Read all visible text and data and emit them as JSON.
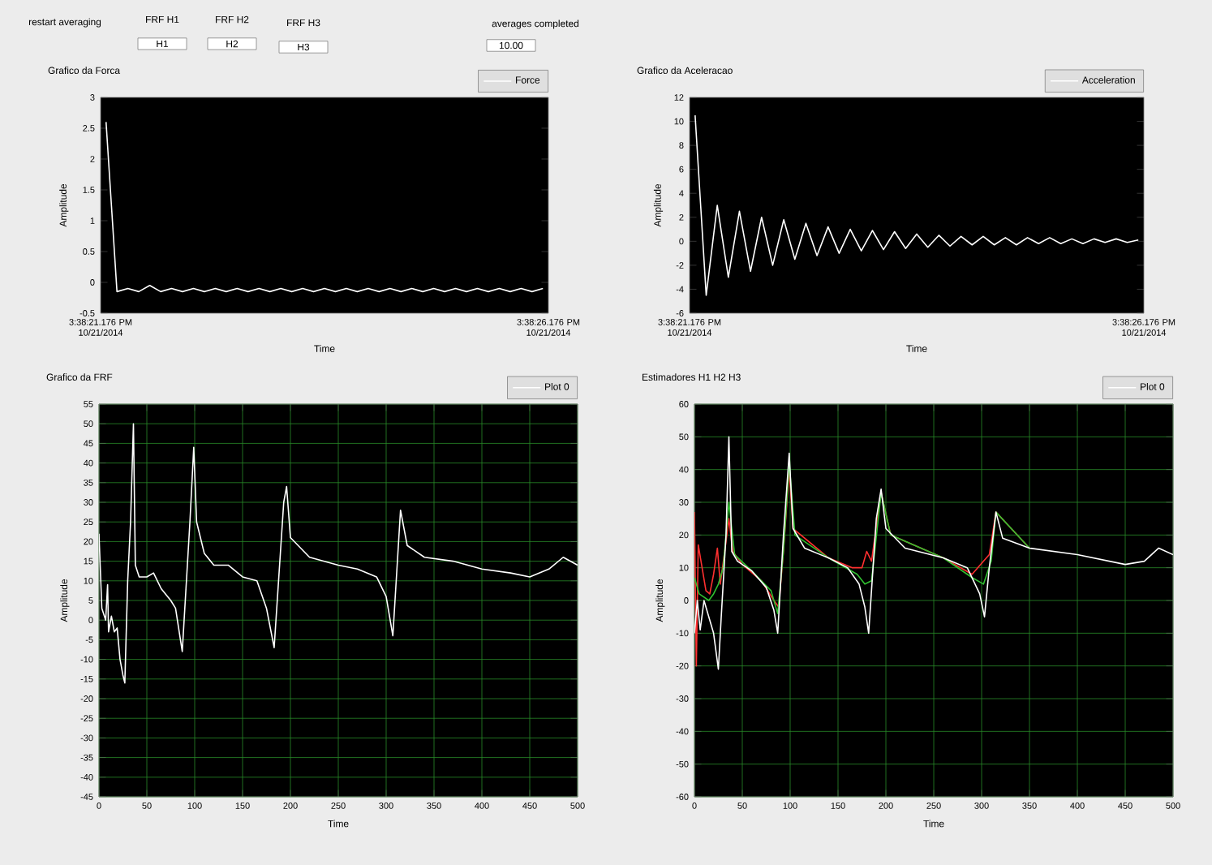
{
  "chart_data": [
    {
      "type": "other",
      "annotations": [
        "restart averaging",
        "FRF H1",
        "H1",
        "FRF H2",
        "H2",
        "FRF H3",
        "H3",
        "averages completed",
        "10.00"
      ]
    },
    {
      "type": "line",
      "title": "Grafico da Forca",
      "xlabel": "Time",
      "ylabel": "Amplitude",
      "legend": "top right",
      "annotations": [
        "3:38:21.176 PM 10/21/2014",
        "3:38:26.176 PM 10/21/2014"
      ],
      "categories": [
        null,
        null,
        null,
        null,
        null,
        null,
        null,
        null,
        null,
        null,
        null,
        null,
        null,
        null,
        null,
        null,
        null,
        null,
        null,
        null,
        null,
        null,
        null,
        null,
        null,
        null,
        null,
        null,
        null,
        null,
        null,
        null,
        null,
        null,
        null,
        null,
        null,
        null,
        null,
        null,
        null
      ],
      "ylim": [
        -0.5,
        3
      ],
      "yticks": [
        -0.5,
        0,
        0.5,
        1,
        1.5,
        2,
        2.5,
        3
      ],
      "series": [
        {
          "name": "Force",
          "color": "#ffffff",
          "values": [
            2.6,
            -0.15,
            -0.1,
            -0.15,
            -0.05,
            -0.15,
            -0.1,
            -0.15,
            -0.1,
            -0.15,
            -0.1,
            -0.15,
            -0.1,
            -0.15,
            -0.1,
            -0.15,
            -0.1,
            -0.15,
            -0.1,
            -0.15,
            -0.1,
            -0.15,
            -0.1,
            -0.15,
            -0.1,
            -0.15,
            -0.1,
            -0.15,
            -0.1,
            -0.15,
            -0.1,
            -0.15,
            -0.1,
            -0.15,
            -0.1,
            -0.15,
            -0.1,
            -0.15,
            -0.1,
            -0.15,
            -0.1
          ]
        }
      ]
    },
    {
      "type": "line",
      "title": "Grafico da Aceleracao",
      "xlabel": "Time",
      "ylabel": "Amplitude",
      "legend": "top right",
      "annotations": [
        "3:38:21.176 PM 10/21/2014",
        "3:38:26.176 PM 10/21/2014"
      ],
      "categories": [
        null,
        null,
        null,
        null,
        null,
        null,
        null,
        null,
        null,
        null,
        null,
        null,
        null,
        null,
        null,
        null,
        null,
        null,
        null,
        null,
        null,
        null,
        null,
        null,
        null,
        null,
        null,
        null,
        null,
        null,
        null,
        null,
        null,
        null,
        null,
        null,
        null,
        null,
        null,
        null,
        null
      ],
      "ylim": [
        -6,
        12
      ],
      "yticks": [
        -6,
        -4,
        -2,
        0,
        2,
        4,
        6,
        8,
        10,
        12
      ],
      "series": [
        {
          "name": "Acceleration",
          "color": "#ffffff",
          "values": [
            10.5,
            -4.5,
            3,
            -3,
            2.5,
            -2.5,
            2,
            -2,
            1.8,
            -1.5,
            1.5,
            -1.2,
            1.2,
            -1,
            1,
            -0.8,
            0.9,
            -0.7,
            0.8,
            -0.6,
            0.6,
            -0.5,
            0.5,
            -0.4,
            0.4,
            -0.3,
            0.4,
            -0.3,
            0.3,
            -0.3,
            0.3,
            -0.2,
            0.3,
            -0.2,
            0.2,
            -0.2,
            0.2,
            -0.1,
            0.2,
            -0.1,
            0.1
          ]
        }
      ]
    },
    {
      "type": "line",
      "title": "Grafico da FRF",
      "xlabel": "Time",
      "ylabel": "Amplitude",
      "legend": "top right",
      "grid": true,
      "xlim": [
        0,
        500
      ],
      "xticks": [
        0,
        50,
        100,
        150,
        200,
        250,
        300,
        350,
        400,
        450,
        500
      ],
      "ylim": [
        -45,
        55
      ],
      "yticks": [
        -45,
        -40,
        -35,
        -30,
        -25,
        -20,
        -15,
        -10,
        -5,
        0,
        5,
        10,
        15,
        20,
        25,
        30,
        35,
        40,
        45,
        50,
        55
      ],
      "series": [
        {
          "name": "Plot 0",
          "color": "#ffffff",
          "x": [
            0,
            3,
            7,
            9,
            10,
            13,
            16,
            19,
            22,
            25,
            27,
            30,
            33,
            36,
            38,
            42,
            50,
            57,
            65,
            75,
            80,
            87,
            95,
            99,
            102,
            110,
            120,
            135,
            150,
            165,
            175,
            183,
            193,
            196,
            200,
            220,
            250,
            270,
            290,
            300,
            307,
            315,
            322,
            340,
            370,
            400,
            430,
            450,
            470,
            485,
            500
          ],
          "values": [
            22,
            3,
            0,
            9,
            -3,
            1,
            -3,
            -2,
            -10,
            -14,
            -16,
            10,
            25,
            50,
            14,
            11,
            11,
            12,
            8,
            5,
            3,
            -8,
            25,
            44,
            25,
            17,
            14,
            14,
            11,
            10,
            3,
            -7,
            30,
            34,
            21,
            16,
            14,
            13,
            11,
            6,
            -4,
            28,
            19,
            16,
            15,
            13,
            12,
            11,
            13,
            16,
            14
          ]
        }
      ]
    },
    {
      "type": "line",
      "title": "Estimadores H1 H2 H3",
      "xlabel": "Time",
      "ylabel": "Amplitude",
      "legend": "top right",
      "grid": true,
      "xlim": [
        0,
        500
      ],
      "xticks": [
        0,
        50,
        100,
        150,
        200,
        250,
        300,
        350,
        400,
        450,
        500
      ],
      "ylim": [
        -60,
        60
      ],
      "yticks": [
        -60,
        -50,
        -40,
        -30,
        -20,
        -10,
        0,
        10,
        20,
        30,
        40,
        50,
        60
      ],
      "series": [
        {
          "color": "#ff3030",
          "x": [
            0,
            2,
            4,
            8,
            12,
            16,
            20,
            24,
            27,
            33,
            36,
            40,
            50,
            70,
            83,
            88,
            93,
            99,
            103,
            140,
            165,
            175,
            180,
            185,
            195,
            205,
            260,
            290,
            302,
            308,
            315,
            350
          ],
          "values": [
            27,
            -20,
            17,
            10,
            3,
            2,
            8,
            16,
            5,
            18,
            25,
            15,
            11,
            6,
            0,
            -2,
            15,
            40,
            22,
            13,
            10,
            10,
            15,
            12,
            33,
            20,
            13,
            8,
            12,
            14,
            27,
            16
          ]
        },
        {
          "color": "#30c030",
          "x": [
            0,
            5,
            10,
            15,
            20,
            25,
            30,
            36,
            42,
            60,
            80,
            87,
            93,
            99,
            105,
            140,
            170,
            178,
            185,
            195,
            205,
            260,
            290,
            302,
            310,
            315,
            350
          ],
          "values": [
            7,
            2,
            1,
            0,
            2,
            5,
            10,
            30,
            14,
            9,
            3,
            -4,
            15,
            42,
            20,
            13,
            8,
            5,
            6,
            33,
            20,
            13,
            7,
            5,
            12,
            27,
            16
          ]
        },
        {
          "name": "Plot 0",
          "color": "#ffffff",
          "x": [
            0,
            3,
            6,
            10,
            15,
            20,
            25,
            28,
            33,
            36,
            39,
            45,
            60,
            75,
            83,
            87,
            93,
            99,
            103,
            115,
            140,
            160,
            172,
            178,
            182,
            190,
            195,
            200,
            220,
            260,
            285,
            298,
            303,
            308,
            315,
            322,
            350,
            400,
            450,
            470,
            485,
            500
          ],
          "values": [
            -10,
            0,
            -9,
            0,
            -5,
            -10,
            -21,
            -5,
            20,
            50,
            15,
            12,
            9,
            4,
            -3,
            -10,
            20,
            45,
            22,
            16,
            13,
            10,
            5,
            -2,
            -10,
            25,
            34,
            22,
            16,
            13,
            10,
            2,
            -5,
            10,
            27,
            19,
            16,
            14,
            11,
            12,
            16,
            14
          ]
        }
      ]
    }
  ]
}
